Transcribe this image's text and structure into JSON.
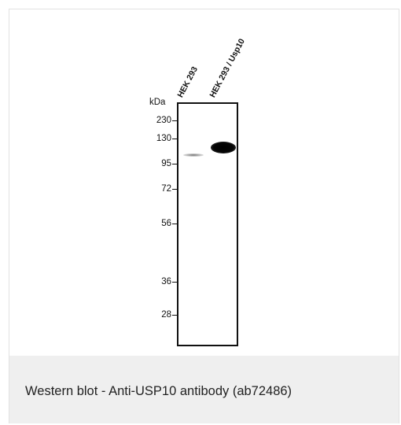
{
  "figure": {
    "unit_label": "kDa",
    "lanes": [
      {
        "label": "HEK 293"
      },
      {
        "label": "HEK 293 / Usp10"
      }
    ],
    "markers": [
      "230",
      "130",
      "95",
      "72",
      "56",
      "36",
      "28"
    ]
  },
  "caption": "Western blot - Anti-USP10 antibody (ab72486)"
}
